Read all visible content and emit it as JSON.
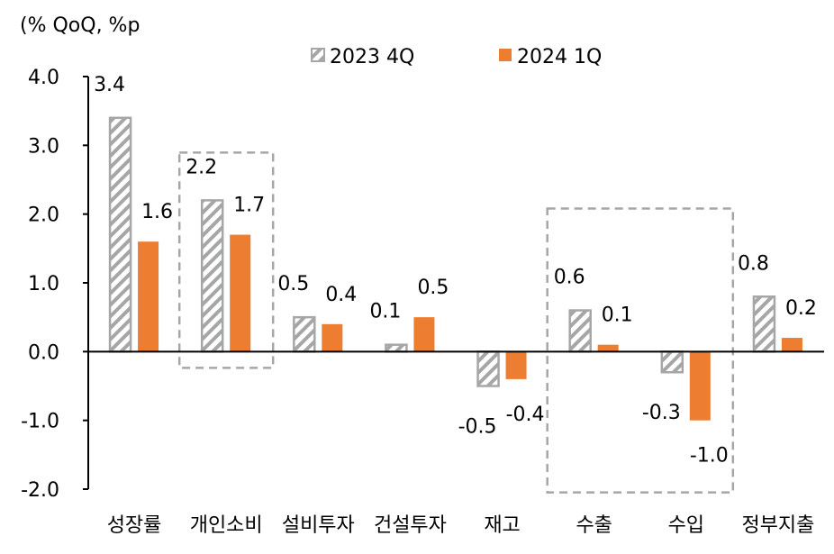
{
  "chart_data": {
    "type": "bar",
    "unit_label": "(% QoQ, %p",
    "categories": [
      "성장률",
      "개인소비",
      "설비투자",
      "건설투자",
      "재고",
      "수출",
      "수입",
      "정부지출"
    ],
    "series": [
      {
        "name": "2023 4Q",
        "values": [
          3.4,
          2.2,
          0.5,
          0.1,
          -0.5,
          0.6,
          -0.3,
          0.8
        ],
        "labels": [
          "3.4",
          "2.2",
          "0.5",
          "0.1",
          "-0.5",
          "0.6",
          "-0.3",
          "0.8"
        ],
        "color": "#a6a6a6",
        "pattern": "hatched"
      },
      {
        "name": "2024 1Q",
        "values": [
          1.6,
          1.7,
          0.4,
          0.5,
          -0.4,
          0.1,
          -1.0,
          0.2
        ],
        "labels": [
          "1.6",
          "1.7",
          "0.4",
          "0.5",
          "-0.4",
          "0.1",
          "-1.0",
          "0.2"
        ],
        "color": "#ed7d31",
        "pattern": "solid"
      }
    ],
    "y_ticks": [
      "4.0",
      "3.0",
      "2.0",
      "1.0",
      "0.0",
      "-1.0",
      "-2.0"
    ],
    "ylim": [
      -2.0,
      4.0
    ],
    "grid": false,
    "legend_position": "top-center",
    "highlight_boxes": [
      {
        "categories": [
          "개인소비"
        ],
        "style": "dashed"
      },
      {
        "categories": [
          "수출",
          "수입"
        ],
        "style": "dashed"
      }
    ]
  }
}
